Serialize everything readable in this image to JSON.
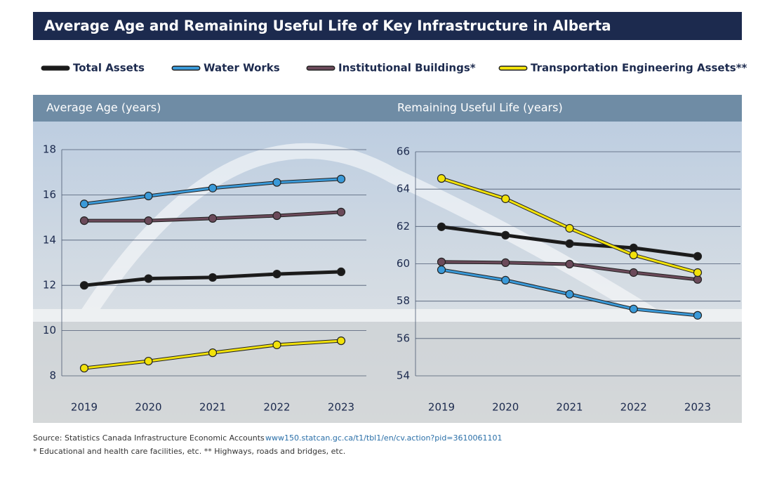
{
  "title": "Average Age and Remaining Useful Life of Key Infrastructure in Alberta",
  "chart_data": [
    {
      "type": "line",
      "title": "Average Age (years)",
      "categories": [
        "2019",
        "2020",
        "2021",
        "2022",
        "2023"
      ],
      "series": [
        {
          "name": "Total Assets",
          "color": "#1a1a1a",
          "values": [
            12.0,
            12.3,
            12.35,
            12.5,
            12.6
          ]
        },
        {
          "name": "Water Works",
          "color": "#3a9ad9",
          "values": [
            15.6,
            15.95,
            16.3,
            16.55,
            16.7
          ]
        },
        {
          "name": "Institutional Buildings*",
          "color": "#6b4a5a",
          "values": [
            14.86,
            14.86,
            14.96,
            15.08,
            15.24
          ]
        },
        {
          "name": "Transportation Engineering Assets**",
          "color": "#f2e20a",
          "values": [
            8.34,
            8.65,
            9.02,
            9.37,
            9.55
          ]
        }
      ],
      "ylim": [
        8,
        18
      ],
      "yticks": [
        8,
        10,
        12,
        14,
        16,
        18
      ],
      "grid": true
    },
    {
      "type": "line",
      "title": "Remaining Useful Life (years)",
      "categories": [
        "2019",
        "2020",
        "2021",
        "2022",
        "2023"
      ],
      "series": [
        {
          "color": "#1a1a1a",
          "values": [
            61.98,
            61.53,
            61.08,
            60.85,
            60.4
          ]
        },
        {
          "color": "#3a9ad9",
          "values": [
            59.68,
            59.12,
            58.37,
            57.58,
            57.24
          ]
        },
        {
          "color": "#6b4a5a",
          "values": [
            60.1,
            60.06,
            59.98,
            59.53,
            59.16
          ]
        },
        {
          "color": "#f2e20a",
          "values": [
            64.57,
            63.48,
            61.9,
            60.47,
            59.53
          ]
        }
      ],
      "ylim": [
        54,
        66
      ],
      "yticks": [
        54,
        56,
        58,
        60,
        62,
        64,
        66
      ],
      "grid": true
    }
  ],
  "source": {
    "text": "Source: Statistics Canada Infrastructure Economic Accounts",
    "link": "www150.statcan.gc.ca/t1/tbl1/en/cv.action?pid=3610061101"
  },
  "footnote": "* Educational and health care facilities, etc.  ** Highways, roads and bridges, etc."
}
